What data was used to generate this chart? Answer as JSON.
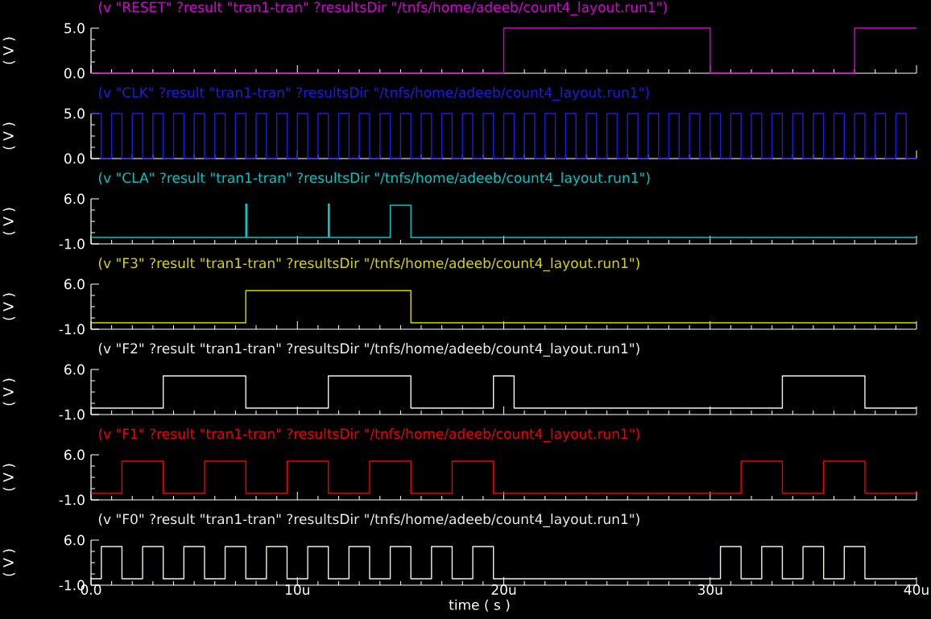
{
  "chart_data": [
    {
      "type": "step",
      "title": "(v \"RESET\" ?result \"tran1-tran\" ?resultsDir \"/tnfs/home/adeeb/count4_layout.run1\")",
      "ylabel": "( V )",
      "color": "#d800d8",
      "x": [
        0,
        20,
        30,
        37,
        40
      ],
      "values": [
        0,
        5,
        0,
        5,
        5
      ],
      "xlim": [
        0,
        40
      ],
      "xticks": [
        0,
        10,
        20,
        30,
        40
      ],
      "ylim": [
        0,
        5
      ],
      "yticks": [
        {
          "value": 0,
          "label": "0.0"
        },
        {
          "value": 5,
          "label": "5.0"
        }
      ],
      "tick_labels": "y"
    },
    {
      "type": "step",
      "title": "(v \"CLK\" ?result \"tran1-tran\" ?resultsDir \"/tnfs/home/adeeb/count4_layout.run1\")",
      "ylabel": "( V )",
      "color": "#1c1ce8",
      "x": [
        0,
        0.5,
        1,
        1.5,
        2,
        2.5,
        3,
        3.5,
        4,
        4.5,
        5,
        5.5,
        6,
        6.5,
        7,
        7.5,
        8,
        8.5,
        9,
        9.5,
        10,
        10.5,
        11,
        11.5,
        12,
        12.5,
        13,
        13.5,
        14,
        14.5,
        15,
        15.5,
        16,
        16.5,
        17,
        17.5,
        18,
        18.5,
        19,
        19.5,
        20,
        20.5,
        21,
        21.5,
        22,
        22.5,
        23,
        23.5,
        24,
        24.5,
        25,
        25.5,
        26,
        26.5,
        27,
        27.5,
        28,
        28.5,
        29,
        29.5,
        30,
        30.5,
        31,
        31.5,
        32,
        32.5,
        33,
        33.5,
        34,
        34.5,
        35,
        35.5,
        36,
        36.5,
        37,
        37.5,
        38,
        38.5,
        39,
        39.5,
        40
      ],
      "values": [
        5,
        0,
        5,
        0,
        5,
        0,
        5,
        0,
        5,
        0,
        5,
        0,
        5,
        0,
        5,
        0,
        5,
        0,
        5,
        0,
        5,
        0,
        5,
        0,
        5,
        0,
        5,
        0,
        5,
        0,
        5,
        0,
        5,
        0,
        5,
        0,
        5,
        0,
        5,
        0,
        5,
        0,
        5,
        0,
        5,
        0,
        5,
        0,
        5,
        0,
        5,
        0,
        5,
        0,
        5,
        0,
        5,
        0,
        5,
        0,
        5,
        0,
        5,
        0,
        5,
        0,
        5,
        0,
        5,
        0,
        5,
        0,
        5,
        0,
        5,
        0,
        5,
        0,
        5,
        0,
        0
      ],
      "xlim": [
        0,
        40
      ],
      "xticks": [
        0,
        10,
        20,
        30,
        40
      ],
      "ylim": [
        0,
        5
      ],
      "yticks": [
        {
          "value": 0,
          "label": "0.0"
        },
        {
          "value": 5,
          "label": "5.0"
        }
      ],
      "tick_labels": "y"
    },
    {
      "type": "step",
      "title": "(v \"CLA\" ?result \"tran1-tran\" ?resultsDir \"/tnfs/home/adeeb/count4_layout.run1\")",
      "ylabel": "( V )",
      "color": "#00c8c8",
      "x": [
        0,
        7.5,
        7.55,
        11.5,
        11.55,
        14.5,
        15.5,
        40
      ],
      "values": [
        0,
        5.2,
        0,
        5.2,
        0,
        5,
        0,
        0
      ],
      "xlim": [
        0,
        40
      ],
      "xticks": [
        0,
        10,
        20,
        30,
        40
      ],
      "ylim": [
        -1,
        6
      ],
      "yticks": [
        {
          "value": -1,
          "label": "-1.0"
        },
        {
          "value": 6,
          "label": "6.0"
        }
      ],
      "tick_labels": "y"
    },
    {
      "type": "step",
      "title": "(v \"F3\" ?result \"tran1-tran\" ?resultsDir \"/tnfs/home/adeeb/count4_layout.run1\")",
      "ylabel": "( V )",
      "color": "#d8d800",
      "x": [
        0,
        7.5,
        15.5,
        40
      ],
      "values": [
        0,
        5,
        0,
        0
      ],
      "xlim": [
        0,
        40
      ],
      "xticks": [
        0,
        10,
        20,
        30,
        40
      ],
      "ylim": [
        -1,
        6
      ],
      "yticks": [
        {
          "value": -1,
          "label": "-1.0"
        },
        {
          "value": 6,
          "label": "6.0"
        }
      ],
      "tick_labels": "y"
    },
    {
      "type": "step",
      "title": "(v \"F2\" ?result \"tran1-tran\" ?resultsDir \"/tnfs/home/adeeb/count4_layout.run1\")",
      "ylabel": "( V )",
      "color": "#f0f0f0",
      "x": [
        0,
        3.5,
        7.5,
        11.5,
        15.5,
        19.5,
        20.5,
        33.5,
        37.5,
        40
      ],
      "values": [
        0,
        5,
        0,
        5,
        0,
        5,
        0,
        5,
        0,
        0
      ],
      "xlim": [
        0,
        40
      ],
      "xticks": [
        0,
        10,
        20,
        30,
        40
      ],
      "ylim": [
        -1,
        6
      ],
      "yticks": [
        {
          "value": -1,
          "label": "-1.0"
        },
        {
          "value": 6,
          "label": "6.0"
        }
      ],
      "tick_labels": "y"
    },
    {
      "type": "step",
      "title": "(v \"F1\" ?result \"tran1-tran\" ?resultsDir \"/tnfs/home/adeeb/count4_layout.run1\")",
      "ylabel": "( V )",
      "color": "#f00000",
      "x": [
        0,
        1.5,
        3.5,
        5.5,
        7.5,
        9.5,
        11.5,
        13.5,
        15.5,
        17.5,
        19.5,
        31.5,
        33.5,
        35.5,
        37.5,
        40
      ],
      "values": [
        0,
        5,
        0,
        5,
        0,
        5,
        0,
        5,
        0,
        5,
        0,
        5,
        0,
        5,
        0,
        0
      ],
      "xlim": [
        0,
        40
      ],
      "xticks": [
        0,
        10,
        20,
        30,
        40
      ],
      "ylim": [
        -1,
        6
      ],
      "yticks": [
        {
          "value": -1,
          "label": "-1.0"
        },
        {
          "value": 6,
          "label": "6.0"
        }
      ],
      "tick_labels": "y"
    },
    {
      "type": "step",
      "title": "(v \"F0\" ?result \"tran1-tran\" ?resultsDir \"/tnfs/home/adeeb/count4_layout.run1\")",
      "ylabel": "( V )",
      "xlabel": "time ( s )",
      "color": "#f0f0dc",
      "x": [
        0,
        0.5,
        1.5,
        2.5,
        3.5,
        4.5,
        5.5,
        6.5,
        7.5,
        8.5,
        9.5,
        10.5,
        11.5,
        12.5,
        13.5,
        14.5,
        15.5,
        16.5,
        17.5,
        18.5,
        19.5,
        30.5,
        31.5,
        32.5,
        33.5,
        34.5,
        35.5,
        36.5,
        37.5,
        40
      ],
      "values": [
        0,
        5,
        0,
        5,
        0,
        5,
        0,
        5,
        0,
        5,
        0,
        5,
        0,
        5,
        0,
        5,
        0,
        5,
        0,
        5,
        0,
        5,
        0,
        5,
        0,
        5,
        0,
        5,
        0,
        0
      ],
      "xlim": [
        0,
        40
      ],
      "xticks": [
        {
          "value": 0,
          "label": "0.0"
        },
        {
          "value": 10,
          "label": "10u"
        },
        {
          "value": 20,
          "label": "20u"
        },
        {
          "value": 30,
          "label": "30u"
        },
        {
          "value": 40,
          "label": "40u"
        }
      ],
      "ylim": [
        -1,
        6
      ],
      "yticks": [
        {
          "value": -1,
          "label": "-1.0"
        },
        {
          "value": 6,
          "label": "6.0"
        }
      ]
    }
  ]
}
